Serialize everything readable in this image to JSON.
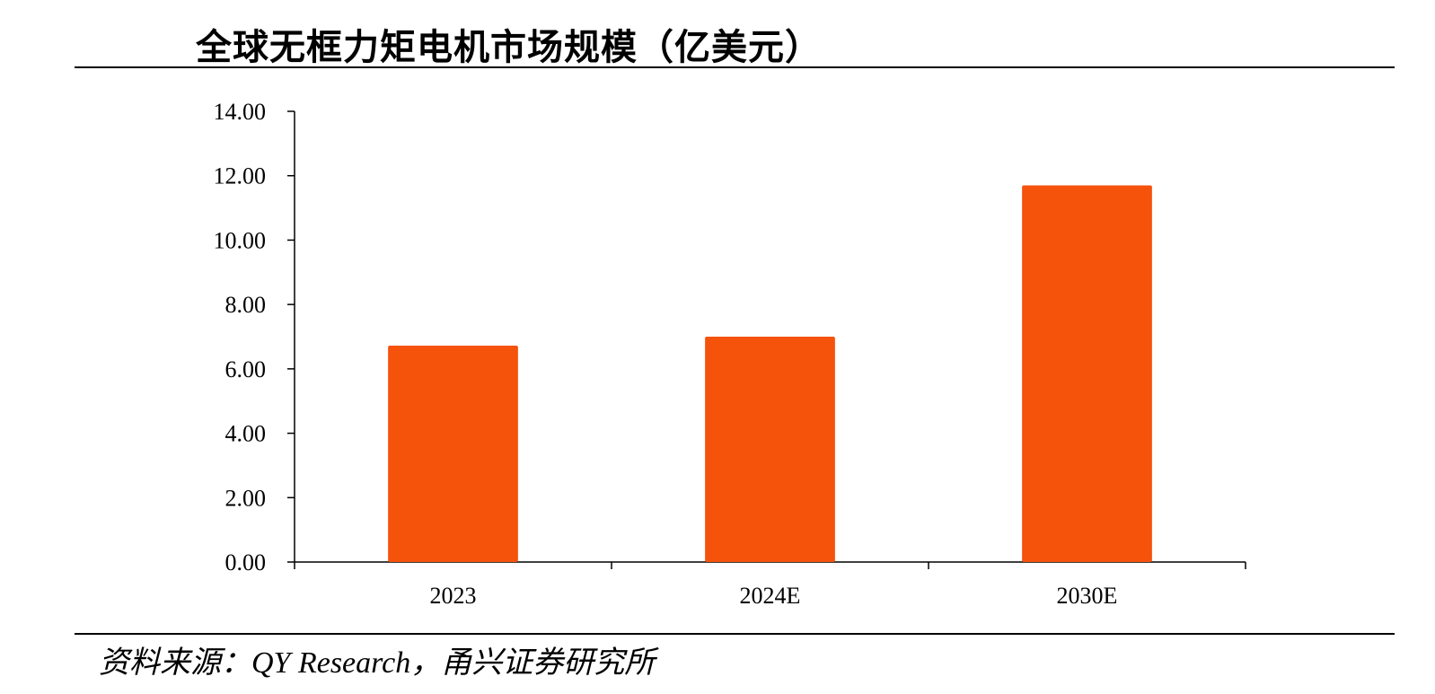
{
  "title": "全球无框力矩电机市场规模（亿美元）",
  "source": "资料来源：QY Research，甬兴证券研究所",
  "colors": {
    "bar": "#F5520C",
    "axis": "#000000",
    "text": "#000000"
  },
  "chart_data": {
    "type": "bar",
    "title": "全球无框力矩电机市场规模（亿美元）",
    "categories": [
      "2023",
      "2024E",
      "2030E"
    ],
    "values": [
      6.72,
      7.0,
      11.7
    ],
    "ylim": [
      0,
      14
    ],
    "yticks": [
      0,
      2,
      4,
      6,
      8,
      10,
      12,
      14
    ],
    "ytick_labels": [
      "0.00",
      "2.00",
      "4.00",
      "6.00",
      "8.00",
      "10.00",
      "12.00",
      "14.00"
    ],
    "xlabel": "",
    "ylabel": "",
    "grid": false,
    "legend": "none"
  }
}
